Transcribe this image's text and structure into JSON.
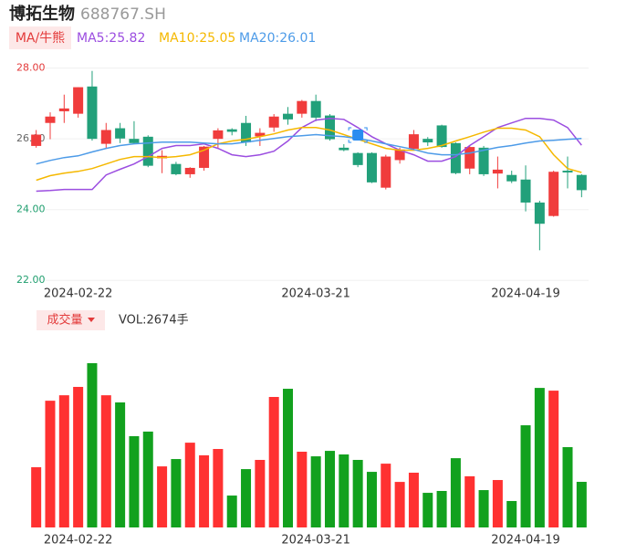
{
  "header": {
    "name": "博拓生物",
    "code": "688767.SH"
  },
  "chart_data": [
    {
      "type": "candlestick",
      "tab_label": "MA/牛熊",
      "categories": [
        null,
        null,
        null,
        "2024-02-22",
        null,
        null,
        null,
        null,
        null,
        null,
        null,
        null,
        null,
        null,
        null,
        null,
        null,
        null,
        null,
        null,
        "2024-03-21",
        null,
        null,
        null,
        null,
        null,
        null,
        null,
        null,
        null,
        null,
        null,
        null,
        null,
        null,
        "2024-04-19",
        null,
        null,
        null,
        null
      ],
      "open": [
        25.8,
        26.45,
        26.78,
        26.71,
        27.48,
        25.86,
        26.3,
        26.0,
        26.06,
        25.45,
        25.29,
        25.0,
        25.18,
        26.0,
        26.27,
        26.45,
        26.07,
        26.32,
        26.71,
        26.71,
        27.07,
        26.66,
        25.75,
        25.6,
        25.6,
        24.62,
        25.4,
        25.72,
        26.0,
        26.38,
        25.88,
        25.16,
        25.75,
        25.02,
        24.98,
        24.85,
        24.2,
        23.82,
        25.1,
        24.98
      ],
      "high": [
        26.25,
        26.75,
        27.25,
        27.46,
        27.92,
        26.45,
        26.45,
        26.5,
        26.1,
        25.68,
        25.35,
        25.2,
        25.8,
        26.3,
        26.3,
        26.65,
        26.3,
        26.7,
        26.9,
        27.1,
        27.25,
        26.7,
        25.85,
        25.62,
        25.62,
        25.55,
        25.75,
        26.25,
        26.05,
        26.4,
        25.9,
        25.8,
        25.8,
        25.5,
        25.1,
        25.25,
        24.25,
        25.1,
        25.5,
        25.0
      ],
      "low": [
        25.75,
        25.99,
        26.45,
        26.6,
        25.95,
        25.73,
        25.88,
        25.85,
        25.2,
        25.03,
        24.97,
        24.9,
        25.1,
        25.75,
        26.1,
        25.8,
        25.8,
        26.2,
        26.4,
        26.6,
        26.5,
        25.95,
        25.65,
        25.2,
        24.75,
        24.57,
        25.3,
        25.7,
        25.8,
        25.75,
        25.0,
        25.0,
        24.95,
        24.6,
        24.75,
        23.95,
        22.85,
        23.8,
        24.6,
        24.35
      ],
      "close": [
        26.12,
        26.63,
        26.86,
        27.46,
        26.0,
        26.25,
        26.01,
        25.88,
        25.24,
        25.52,
        25.0,
        25.18,
        25.78,
        26.24,
        26.2,
        25.9,
        26.17,
        26.63,
        26.55,
        27.07,
        26.6,
        25.99,
        25.68,
        25.26,
        24.77,
        25.5,
        25.7,
        26.13,
        25.9,
        25.77,
        25.03,
        25.77,
        25.0,
        25.13,
        24.8,
        24.2,
        23.6,
        25.07,
        25.05,
        24.55
      ],
      "up_color": "#f03c3c",
      "down_color": "#22a07a",
      "ylim": [
        21.8,
        28.3
      ],
      "yticks": [
        {
          "value": 28,
          "label": "28.00"
        },
        {
          "value": 26,
          "label": "26.00"
        },
        {
          "value": 24,
          "label": "24.00"
        },
        {
          "value": 22,
          "label": "22.00"
        }
      ],
      "ytick_colors": [
        "#e33a3a",
        "#666666",
        "#1f9e6e",
        "#1f9e6e"
      ],
      "grid": true,
      "series": [
        {
          "name": "MA5:25.82",
          "color": "#9b4de0",
          "values": [
            24.52,
            24.54,
            24.57,
            24.57,
            24.57,
            24.98,
            25.14,
            25.29,
            25.5,
            25.73,
            25.81,
            25.81,
            25.86,
            25.73,
            25.55,
            25.5,
            25.55,
            25.65,
            25.94,
            26.32,
            26.53,
            26.58,
            26.55,
            26.32,
            26.06,
            25.86,
            25.68,
            25.55,
            25.37,
            25.37,
            25.5,
            25.81,
            26.06,
            26.32,
            26.45,
            26.58,
            26.58,
            26.53,
            26.32,
            25.82
          ]
        },
        {
          "name": "MA10:25.05",
          "color": "#f5b800",
          "values": [
            24.83,
            24.96,
            25.03,
            25.08,
            25.16,
            25.29,
            25.42,
            25.5,
            25.5,
            25.47,
            25.5,
            25.55,
            25.68,
            25.86,
            25.94,
            25.99,
            26.06,
            26.14,
            26.25,
            26.32,
            26.32,
            26.25,
            26.12,
            25.99,
            25.86,
            25.73,
            25.68,
            25.68,
            25.73,
            25.81,
            25.94,
            26.06,
            26.19,
            26.3,
            26.3,
            26.25,
            26.06,
            25.55,
            25.16,
            25.05
          ]
        },
        {
          "name": "MA20:26.01",
          "color": "#4d9be8",
          "values": [
            25.29,
            25.39,
            25.47,
            25.52,
            25.63,
            25.73,
            25.81,
            25.86,
            25.88,
            25.91,
            25.91,
            25.91,
            25.88,
            25.86,
            25.86,
            25.91,
            25.96,
            26.01,
            26.06,
            26.09,
            26.12,
            26.09,
            26.06,
            26.01,
            25.94,
            25.86,
            25.78,
            25.7,
            25.6,
            25.55,
            25.55,
            25.6,
            25.68,
            25.76,
            25.81,
            25.88,
            25.94,
            25.96,
            25.99,
            26.01
          ]
        }
      ]
    },
    {
      "type": "bar",
      "title": "成交量",
      "value_label": "VOL:2674手",
      "categories": [
        null,
        null,
        null,
        "2024-02-22",
        null,
        null,
        null,
        null,
        null,
        null,
        null,
        null,
        null,
        null,
        null,
        null,
        null,
        null,
        null,
        null,
        "2024-03-21",
        null,
        null,
        null,
        null,
        null,
        null,
        null,
        null,
        null,
        null,
        null,
        null,
        null,
        null,
        "2024-04-19",
        null,
        null,
        null,
        null
      ],
      "values": [
        3530,
        7430,
        7750,
        8240,
        9630,
        7750,
        7330,
        5350,
        5620,
        3580,
        4010,
        4970,
        4230,
        4600,
        1870,
        3420,
        3960,
        7650,
        8130,
        4440,
        4170,
        4490,
        4280,
        3960,
        3260,
        3740,
        2670,
        3210,
        2030,
        2140,
        4060,
        3000,
        2190,
        2780,
        1550,
        5990,
        8180,
        8020,
        4710,
        2674
      ],
      "up_color": "#ff3131",
      "down_color": "#12a11e"
    }
  ]
}
